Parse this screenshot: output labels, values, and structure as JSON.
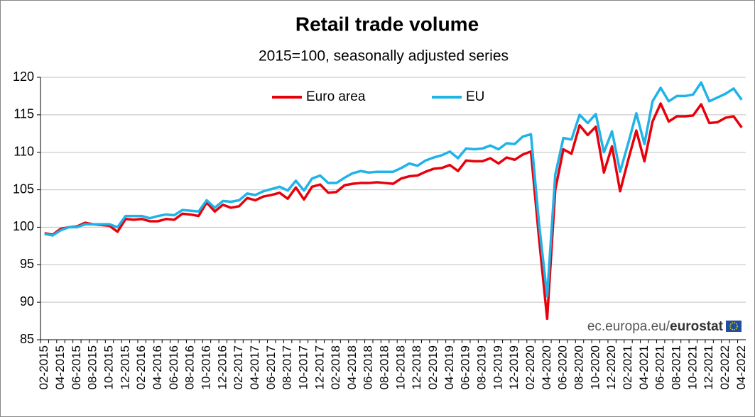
{
  "chart_data": {
    "type": "line",
    "title": "Retail trade volume",
    "subtitle": "2015=100, seasonally adjusted series",
    "watermark": "ec.europa.eu/",
    "watermark_brand": "eurostat",
    "categories": [
      "02-2015",
      null,
      "04-2015",
      null,
      "06-2015",
      null,
      "08-2015",
      null,
      "10-2015",
      null,
      "12-2015",
      null,
      "02-2016",
      null,
      "04-2016",
      null,
      "06-2016",
      null,
      "08-2016",
      null,
      "10-2016",
      null,
      "12-2016",
      null,
      "02-2017",
      null,
      "04-2017",
      null,
      "06-2017",
      null,
      "08-2017",
      null,
      "10-2017",
      null,
      "12-2017",
      null,
      "02-2018",
      null,
      "04-2018",
      null,
      "06-2018",
      null,
      "08-2018",
      null,
      "10-2018",
      null,
      "12-2018",
      null,
      "02-2019",
      null,
      "04-2019",
      null,
      "06-2019",
      null,
      "08-2019",
      null,
      "10-2019",
      null,
      "12-2019",
      null,
      "02-2020",
      null,
      "04-2020",
      null,
      "06-2020",
      null,
      "08-2020",
      null,
      "10-2020",
      null,
      "12-2020",
      null,
      "02-2021",
      null,
      "04-2021",
      null,
      "06-2021",
      null,
      "08-2021",
      null,
      "10-2021",
      null,
      "12-2021",
      null,
      "02-2022",
      null,
      "04-2022"
    ],
    "series": [
      {
        "name": "Euro area",
        "color": "#e8000b",
        "values": [
          99.2,
          99.0,
          99.8,
          100.0,
          100.1,
          100.6,
          100.4,
          100.3,
          100.2,
          99.4,
          101.1,
          101.0,
          101.1,
          100.8,
          100.8,
          101.1,
          101.0,
          101.8,
          101.7,
          101.5,
          103.3,
          102.1,
          103.0,
          102.6,
          102.8,
          103.9,
          103.6,
          104.1,
          104.3,
          104.6,
          103.8,
          105.3,
          103.7,
          105.4,
          105.7,
          104.6,
          104.7,
          105.6,
          105.8,
          105.9,
          105.9,
          106.0,
          105.9,
          105.8,
          106.5,
          106.8,
          106.9,
          107.4,
          107.8,
          107.9,
          108.3,
          107.5,
          108.9,
          108.8,
          108.8,
          109.2,
          108.5,
          109.3,
          109.0,
          109.7,
          110.1,
          98.5,
          87.8,
          105.0,
          110.4,
          109.8,
          113.6,
          112.3,
          113.4,
          107.3,
          110.8,
          104.8,
          109.0,
          112.9,
          108.8,
          114.1,
          116.5,
          114.1,
          114.8,
          114.8,
          114.9,
          116.4,
          113.9,
          114.0,
          114.6,
          114.8,
          113.3
        ]
      },
      {
        "name": "EU",
        "color": "#1fb3e8",
        "values": [
          99.1,
          98.9,
          99.6,
          100.0,
          100.0,
          100.4,
          100.4,
          100.4,
          100.4,
          100.0,
          101.5,
          101.5,
          101.5,
          101.2,
          101.5,
          101.7,
          101.6,
          102.3,
          102.2,
          102.1,
          103.6,
          102.6,
          103.5,
          103.4,
          103.6,
          104.5,
          104.3,
          104.8,
          105.1,
          105.4,
          104.9,
          106.2,
          104.9,
          106.5,
          106.9,
          105.9,
          105.9,
          106.6,
          107.2,
          107.5,
          107.3,
          107.4,
          107.4,
          107.4,
          107.9,
          108.5,
          108.2,
          108.9,
          109.3,
          109.6,
          110.1,
          109.2,
          110.5,
          110.4,
          110.5,
          110.9,
          110.4,
          111.2,
          111.1,
          112.1,
          112.4,
          100.5,
          90.8,
          107.0,
          111.9,
          111.7,
          115.0,
          113.9,
          115.1,
          110.0,
          112.8,
          107.4,
          111.2,
          115.2,
          111.1,
          116.8,
          118.6,
          116.8,
          117.5,
          117.5,
          117.7,
          119.3,
          116.8,
          117.3,
          117.8,
          118.5,
          117.0
        ]
      }
    ],
    "ylim": [
      85,
      120
    ],
    "yticks": [
      85,
      90,
      95,
      100,
      105,
      110,
      115,
      120
    ],
    "grid": true,
    "legend": "top"
  }
}
